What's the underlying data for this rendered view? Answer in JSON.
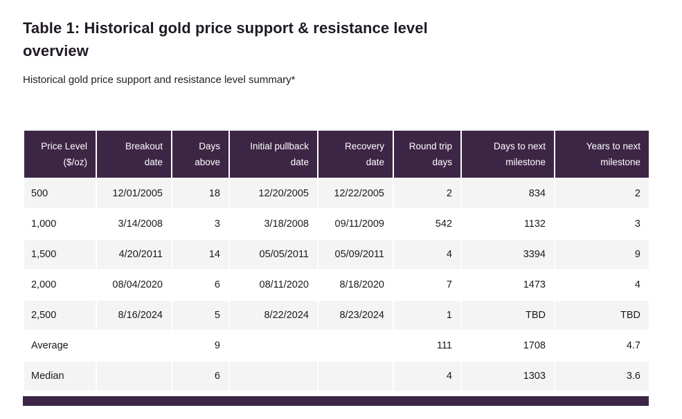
{
  "page": {
    "title": "Table 1: Historical gold price support & resistance level overview",
    "subtitle": "Historical gold price support and resistance level summary*"
  },
  "table": {
    "columns": [
      {
        "line1": "Price Level",
        "line2": "($/oz)"
      },
      {
        "line1": "Breakout",
        "line2": "date"
      },
      {
        "line1": "Days",
        "line2": "above"
      },
      {
        "line1": "Initial pullback",
        "line2": "date"
      },
      {
        "line1": "Recovery",
        "line2": "date"
      },
      {
        "line1": "Round trip",
        "line2": "days"
      },
      {
        "line1": "Days to next",
        "line2": "milestone"
      },
      {
        "line1": "Years to next",
        "line2": "milestone"
      }
    ],
    "rows": [
      [
        "500",
        "12/01/2005",
        "18",
        "12/20/2005",
        "12/22/2005",
        "2",
        "834",
        "2"
      ],
      [
        "1,000",
        "3/14/2008",
        "3",
        "3/18/2008",
        "09/11/2009",
        "542",
        "1132",
        "3"
      ],
      [
        "1,500",
        "4/20/2011",
        "14",
        "05/05/2011",
        "05/09/2011",
        "4",
        "3394",
        "9"
      ],
      [
        "2,000",
        "08/04/2020",
        "6",
        "08/11/2020",
        "8/18/2020",
        "7",
        "1473",
        "4"
      ],
      [
        "2,500",
        "8/16/2024",
        "5",
        "8/22/2024",
        "8/23/2024",
        "1",
        "TBD",
        "TBD"
      ],
      [
        "Average",
        "",
        "9",
        "",
        "",
        "111",
        "1708",
        "4.7"
      ],
      [
        "Median",
        "",
        "6",
        "",
        "",
        "4",
        "1303",
        "3.6"
      ]
    ]
  },
  "chart_data": {
    "type": "table",
    "title": "Table 1: Historical gold price support & resistance level overview",
    "subtitle": "Historical gold price support and resistance level summary*",
    "columns": [
      "Price Level ($/oz)",
      "Breakout date",
      "Days above",
      "Initial pullback date",
      "Recovery date",
      "Round trip days",
      "Days to next milestone",
      "Years to next milestone"
    ],
    "rows": [
      [
        "500",
        "12/01/2005",
        "18",
        "12/20/2005",
        "12/22/2005",
        "2",
        "834",
        "2"
      ],
      [
        "1,000",
        "3/14/2008",
        "3",
        "3/18/2008",
        "09/11/2009",
        "542",
        "1132",
        "3"
      ],
      [
        "1,500",
        "4/20/2011",
        "14",
        "05/05/2011",
        "05/09/2011",
        "4",
        "3394",
        "9"
      ],
      [
        "2,000",
        "08/04/2020",
        "6",
        "08/11/2020",
        "8/18/2020",
        "7",
        "1473",
        "4"
      ],
      [
        "2,500",
        "8/16/2024",
        "5",
        "8/22/2024",
        "8/23/2024",
        "1",
        "TBD",
        "TBD"
      ],
      [
        "Average",
        "",
        "9",
        "",
        "",
        "111",
        "1708",
        "4.7"
      ],
      [
        "Median",
        "",
        "6",
        "",
        "",
        "4",
        "1303",
        "3.6"
      ]
    ]
  },
  "colors": {
    "header_bg": "#3d2645",
    "header_text": "#ffffff",
    "row_stripe_bg": "#f4f4f5",
    "row_bg": "#ffffff",
    "body_text": "#1a1a1a",
    "title_text": "#1f1a23",
    "footer_bar_bg": "#3d2645"
  }
}
